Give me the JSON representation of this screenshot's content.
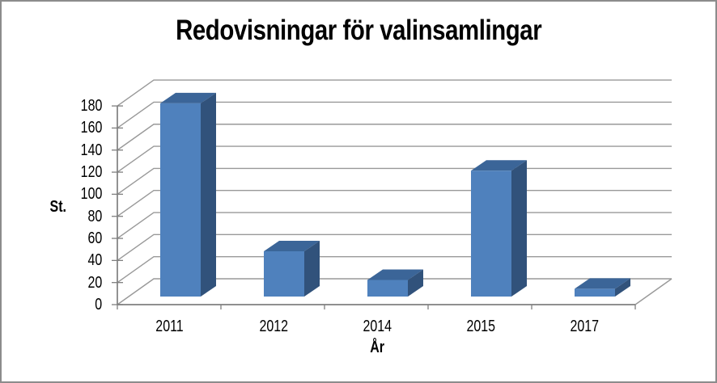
{
  "window": {
    "background": "#ffffff",
    "border_color": "#8c8c8c"
  },
  "chart_data": {
    "type": "bar",
    "subtype": "3d-column",
    "title": "Redovisningar för valinsamlingar",
    "xlabel": "År",
    "ylabel": "St.",
    "categories": [
      "2011",
      "2012",
      "2014",
      "2015",
      "2017"
    ],
    "values": [
      175,
      41,
      15,
      114,
      7
    ],
    "ylim": [
      0,
      180
    ],
    "ytick_step": 20,
    "yticks": [
      0,
      20,
      40,
      60,
      80,
      100,
      120,
      140,
      160,
      180
    ],
    "grid": true,
    "legend": false,
    "colors": {
      "bar_front": "#4f81bd",
      "bar_top": "#3b6598",
      "bar_side": "#31527b",
      "gridline": "#999999",
      "axis": "#7f7f7f",
      "text": "#000000"
    }
  }
}
